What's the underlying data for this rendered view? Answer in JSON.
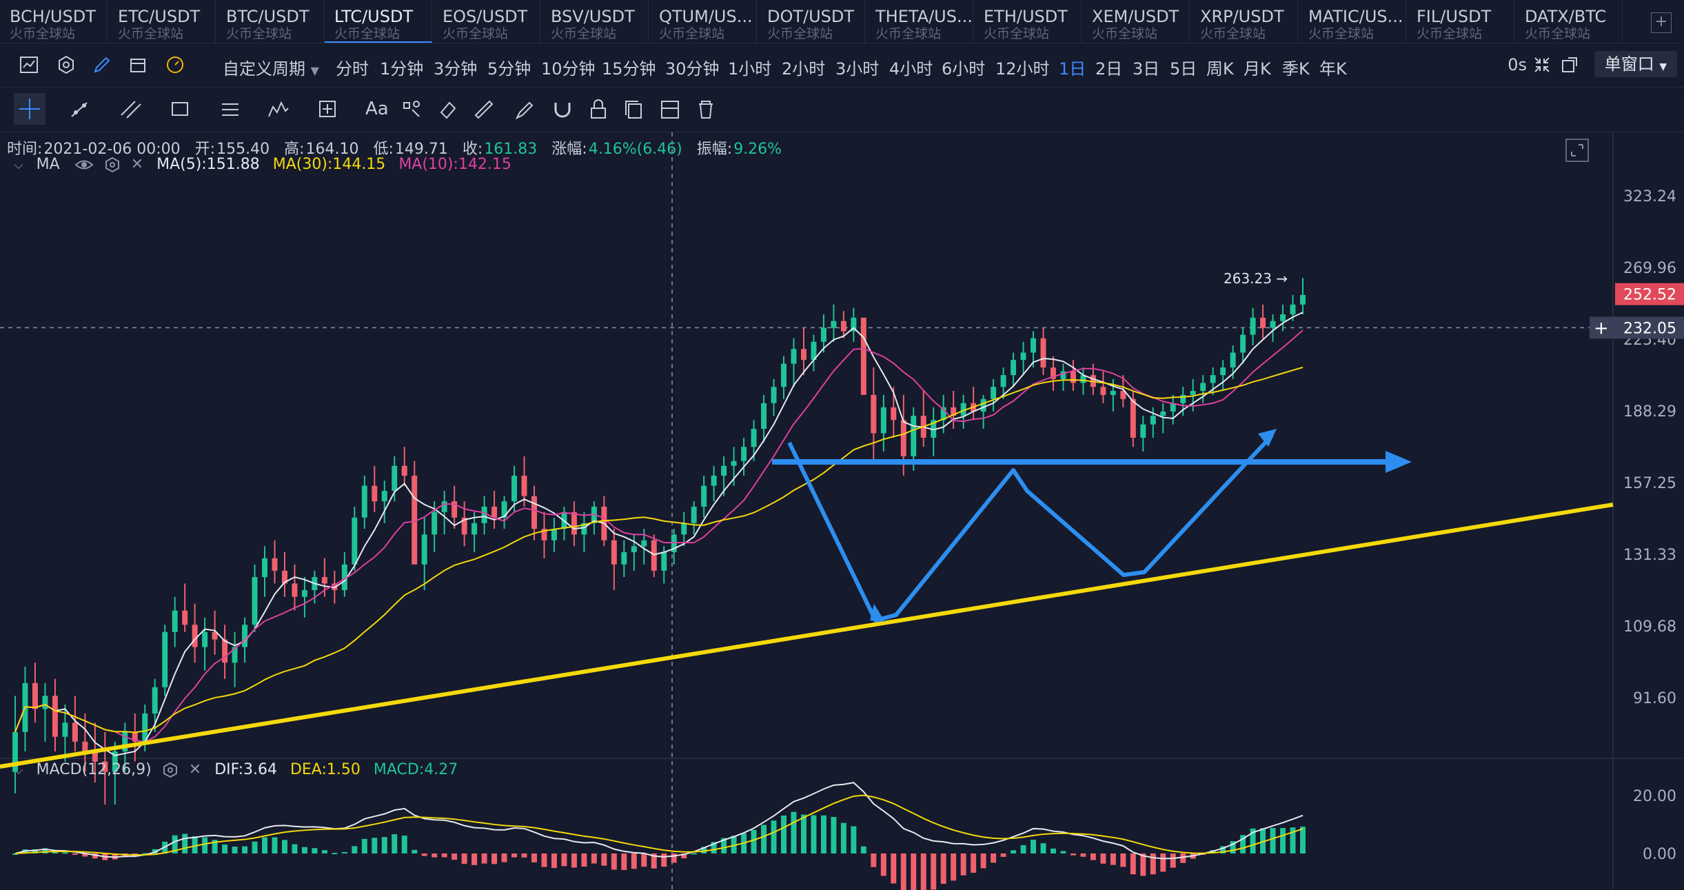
{
  "tabs": [
    {
      "symbol": "BCH/USDT",
      "exchange": "火币全球站"
    },
    {
      "symbol": "ETC/USDT",
      "exchange": "火币全球站"
    },
    {
      "symbol": "BTC/USDT",
      "exchange": "火币全球站"
    },
    {
      "symbol": "LTC/USDT",
      "exchange": "火币全球站",
      "active": true
    },
    {
      "symbol": "EOS/USDT",
      "exchange": "火币全球站"
    },
    {
      "symbol": "BSV/USDT",
      "exchange": "火币全球站"
    },
    {
      "symbol": "QTUM/US...",
      "exchange": "火币全球站"
    },
    {
      "symbol": "DOT/USDT",
      "exchange": "火币全球站"
    },
    {
      "symbol": "THETA/US...",
      "exchange": "火币全球站"
    },
    {
      "symbol": "ETH/USDT",
      "exchange": "火币全球站"
    },
    {
      "symbol": "XEM/USDT",
      "exchange": "火币全球站"
    },
    {
      "symbol": "XRP/USDT",
      "exchange": "火币全球站"
    },
    {
      "symbol": "MATIC/US...",
      "exchange": "火币全球站"
    },
    {
      "symbol": "FIL/USDT",
      "exchange": "火币全球站"
    },
    {
      "symbol": "DATX/BTC",
      "exchange": "火币全球站"
    }
  ],
  "toolbar": {
    "custom_period": "自定义周期",
    "periods": [
      "分时",
      "1分钟",
      "3分钟",
      "5分钟",
      "10分钟",
      "15分钟",
      "30分钟",
      "1小时",
      "2小时",
      "3小时",
      "4小时",
      "6小时",
      "12小时",
      "1日",
      "2日",
      "3日",
      "5日",
      "周K",
      "月K",
      "季K",
      "年K"
    ],
    "active_period": "1日",
    "countdown": "0s",
    "window_mode": "单窗口"
  },
  "info": {
    "time_label": "时间:",
    "time": "2021-02-06 00:00",
    "open_label": "开:",
    "open": "155.40",
    "high_label": "高:",
    "high": "164.10",
    "low_label": "低:",
    "low": "149.71",
    "close_label": "收:",
    "close": "161.83",
    "change_label": "涨幅:",
    "change": "4.16%(6.46)",
    "amp_label": "振幅:",
    "amp": "9.26%"
  },
  "ma": {
    "name": "MA",
    "ma5": "MA(5):151.88",
    "ma30": "MA(30):144.15",
    "ma10": "MA(10):142.15"
  },
  "macd": {
    "name": "MACD(12,26,9)",
    "dif": "DIF:3.64",
    "dea": "DEA:1.50",
    "macd": "MACD:4.27"
  },
  "colors": {
    "up": "#1fc497",
    "down": "#f0616d",
    "ma5": "#e6e9ef",
    "ma30": "#f5d90a",
    "ma10": "#e040a0",
    "trend": "#f5d90a",
    "pattern": "#2d8ef0"
  },
  "price_axis": {
    "labels": [
      "323.24",
      "269.96",
      "225.40",
      "188.29",
      "157.25",
      "131.33",
      "109.68",
      "91.60"
    ],
    "current_price": "252.52",
    "crosshair_price": "232.05",
    "peak_label": "263.23"
  },
  "macd_axis": {
    "labels": [
      "20.00",
      "0.00"
    ]
  },
  "chart_data": {
    "type": "candlestick",
    "scale": "log",
    "ylim": [
      80,
      360
    ],
    "current": 252.52,
    "crosshair": 232.05,
    "peak": 263.23,
    "ohlc_approx": [
      [
        76,
        92,
        72,
        84
      ],
      [
        84,
        99,
        80,
        95
      ],
      [
        95,
        100,
        86,
        89
      ],
      [
        89,
        95,
        82,
        92
      ],
      [
        92,
        96,
        80,
        83
      ],
      [
        83,
        90,
        78,
        86
      ],
      [
        86,
        92,
        80,
        82
      ],
      [
        82,
        88,
        76,
        80
      ],
      [
        80,
        86,
        74,
        78
      ],
      [
        78,
        84,
        70,
        76
      ],
      [
        76,
        82,
        70,
        80
      ],
      [
        80,
        86,
        76,
        84
      ],
      [
        84,
        88,
        78,
        82
      ],
      [
        82,
        90,
        80,
        88
      ],
      [
        88,
        96,
        84,
        94
      ],
      [
        94,
        110,
        92,
        108
      ],
      [
        108,
        118,
        104,
        114
      ],
      [
        114,
        122,
        108,
        110
      ],
      [
        110,
        116,
        100,
        104
      ],
      [
        104,
        112,
        98,
        108
      ],
      [
        108,
        114,
        102,
        106
      ],
      [
        106,
        110,
        96,
        100
      ],
      [
        100,
        108,
        94,
        104
      ],
      [
        104,
        112,
        100,
        110
      ],
      [
        110,
        128,
        108,
        124
      ],
      [
        124,
        134,
        118,
        130
      ],
      [
        130,
        136,
        122,
        126
      ],
      [
        126,
        132,
        118,
        122
      ],
      [
        122,
        128,
        114,
        118
      ],
      [
        118,
        124,
        112,
        120
      ],
      [
        120,
        126,
        116,
        124
      ],
      [
        124,
        130,
        118,
        122
      ],
      [
        122,
        126,
        116,
        120
      ],
      [
        120,
        132,
        118,
        128
      ],
      [
        128,
        148,
        126,
        144
      ],
      [
        144,
        160,
        140,
        156
      ],
      [
        156,
        164,
        146,
        150
      ],
      [
        150,
        158,
        142,
        154
      ],
      [
        154,
        168,
        150,
        164
      ],
      [
        164,
        172,
        156,
        160
      ],
      [
        160,
        166,
        140,
        128
      ],
      [
        128,
        144,
        120,
        138
      ],
      [
        138,
        150,
        132,
        146
      ],
      [
        146,
        154,
        138,
        150
      ],
      [
        150,
        156,
        140,
        144
      ],
      [
        144,
        150,
        134,
        138
      ],
      [
        138,
        146,
        132,
        142
      ],
      [
        142,
        152,
        138,
        148
      ],
      [
        148,
        154,
        140,
        144
      ],
      [
        144,
        152,
        140,
        150
      ],
      [
        150,
        164,
        146,
        160
      ],
      [
        160,
        168,
        148,
        152
      ],
      [
        152,
        156,
        136,
        140
      ],
      [
        140,
        146,
        130,
        136
      ],
      [
        136,
        144,
        132,
        140
      ],
      [
        140,
        148,
        136,
        146
      ],
      [
        146,
        150,
        134,
        138
      ],
      [
        138,
        146,
        132,
        142
      ],
      [
        142,
        150,
        138,
        148
      ],
      [
        148,
        152,
        134,
        136
      ],
      [
        136,
        140,
        120,
        128
      ],
      [
        128,
        136,
        124,
        132
      ],
      [
        132,
        138,
        126,
        134
      ],
      [
        134,
        140,
        128,
        136
      ],
      [
        136,
        138,
        124,
        126
      ],
      [
        126,
        134,
        122,
        132
      ],
      [
        132,
        140,
        128,
        138
      ],
      [
        138,
        146,
        134,
        142
      ],
      [
        142,
        150,
        138,
        148
      ],
      [
        148,
        160,
        144,
        156
      ],
      [
        156,
        164,
        150,
        160
      ],
      [
        160,
        168,
        152,
        164
      ],
      [
        164,
        172,
        156,
        166
      ],
      [
        166,
        176,
        160,
        172
      ],
      [
        172,
        184,
        166,
        180
      ],
      [
        180,
        196,
        174,
        192
      ],
      [
        192,
        204,
        186,
        200
      ],
      [
        200,
        216,
        194,
        212
      ],
      [
        212,
        226,
        200,
        220
      ],
      [
        220,
        232,
        206,
        214
      ],
      [
        214,
        228,
        208,
        224
      ],
      [
        224,
        240,
        218,
        232
      ],
      [
        232,
        246,
        224,
        236
      ],
      [
        236,
        242,
        226,
        230
      ],
      [
        230,
        244,
        224,
        238
      ],
      [
        238,
        236,
        200,
        196
      ],
      [
        196,
        210,
        166,
        178
      ],
      [
        178,
        196,
        170,
        190
      ],
      [
        190,
        200,
        176,
        184
      ],
      [
        184,
        196,
        160,
        168
      ],
      [
        168,
        190,
        162,
        186
      ],
      [
        186,
        198,
        172,
        176
      ],
      [
        176,
        190,
        168,
        184
      ],
      [
        184,
        196,
        178,
        190
      ],
      [
        190,
        198,
        180,
        186
      ],
      [
        186,
        196,
        180,
        192
      ],
      [
        192,
        200,
        184,
        188
      ],
      [
        188,
        196,
        180,
        194
      ],
      [
        194,
        204,
        188,
        200
      ],
      [
        200,
        210,
        194,
        206
      ],
      [
        206,
        218,
        200,
        214
      ],
      [
        214,
        224,
        206,
        218
      ],
      [
        218,
        230,
        210,
        226
      ],
      [
        226,
        232,
        206,
        210
      ],
      [
        210,
        216,
        198,
        204
      ],
      [
        204,
        212,
        198,
        208
      ],
      [
        208,
        214,
        198,
        202
      ],
      [
        202,
        210,
        196,
        206
      ],
      [
        206,
        212,
        196,
        200
      ],
      [
        200,
        208,
        192,
        196
      ],
      [
        196,
        204,
        188,
        198
      ],
      [
        198,
        206,
        190,
        194
      ],
      [
        194,
        198,
        172,
        176
      ],
      [
        176,
        186,
        170,
        182
      ],
      [
        182,
        190,
        176,
        186
      ],
      [
        186,
        192,
        178,
        188
      ],
      [
        188,
        196,
        182,
        192
      ],
      [
        192,
        200,
        186,
        196
      ],
      [
        196,
        204,
        188,
        198
      ],
      [
        198,
        206,
        192,
        202
      ],
      [
        202,
        210,
        196,
        206
      ],
      [
        206,
        214,
        198,
        210
      ],
      [
        210,
        222,
        204,
        218
      ],
      [
        218,
        232,
        212,
        228
      ],
      [
        228,
        244,
        222,
        238
      ],
      [
        238,
        246,
        226,
        232
      ],
      [
        232,
        240,
        224,
        236
      ],
      [
        236,
        246,
        230,
        240
      ],
      [
        240,
        252,
        236,
        246
      ],
      [
        246,
        263,
        240,
        252
      ]
    ]
  }
}
